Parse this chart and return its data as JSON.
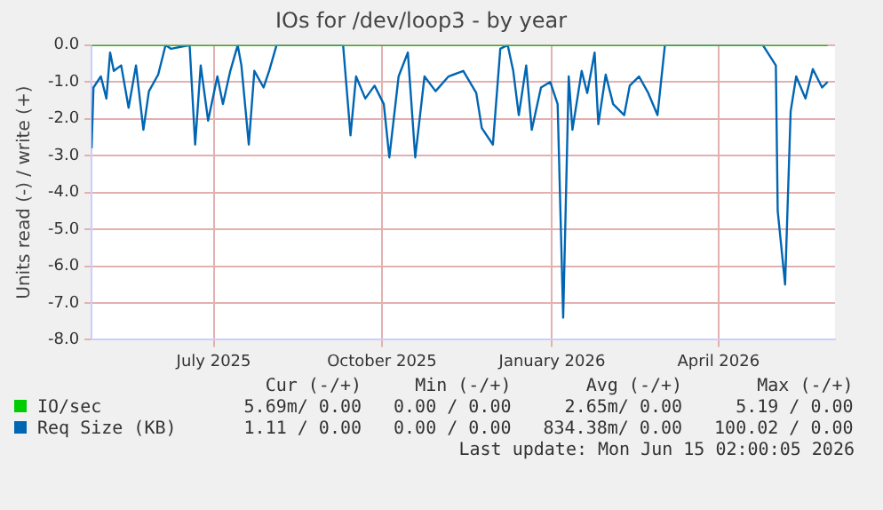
{
  "chart_data": {
    "type": "line",
    "title": "IOs for /dev/loop3 - by year",
    "ylabel": "Units read (-) / write (+)",
    "xlim": [
      "2025-05-12",
      "2026-06-18"
    ],
    "xticks": [
      {
        "value": "2025-07-17",
        "label": "July 2025"
      },
      {
        "value": "2025-10-16",
        "label": "October 2025"
      },
      {
        "value": "2026-01-16",
        "label": "January 2026"
      },
      {
        "value": "2026-04-16",
        "label": "April 2026"
      }
    ],
    "ylim": [
      -8,
      0
    ],
    "yticks": [
      {
        "value": -8,
        "label": "-8.0"
      },
      {
        "value": -7,
        "label": "-7.0"
      },
      {
        "value": -6,
        "label": "-6.0"
      },
      {
        "value": -5,
        "label": "-5.0"
      },
      {
        "value": -4,
        "label": "-4.0"
      },
      {
        "value": -3,
        "label": "-3.0"
      },
      {
        "value": -2,
        "label": "-2.0"
      },
      {
        "value": -1,
        "label": "-1.0"
      },
      {
        "value": 0,
        "label": "0.0"
      }
    ],
    "grid": true,
    "legend": "bottom",
    "marker": "none",
    "line_style": "solid",
    "series": [
      {
        "name": "IO/sec",
        "color": "#00cc00",
        "x": [
          "2025-05-12",
          "2026-06-14"
        ],
        "values": [
          0,
          0
        ]
      },
      {
        "name": "Req Size (KB)",
        "color": "#0066b3",
        "x": [
          "2025-05-12",
          "2025-05-13",
          "2025-05-17",
          "2025-05-20",
          "2025-05-22",
          "2025-05-24",
          "2025-05-28",
          "2025-06-01",
          "2025-06-05",
          "2025-06-09",
          "2025-06-12",
          "2025-06-17",
          "2025-06-21",
          "2025-06-24",
          "2025-07-04",
          "2025-07-07",
          "2025-07-10",
          "2025-07-14",
          "2025-07-19",
          "2025-07-22",
          "2025-07-26",
          "2025-07-30",
          "2025-08-01",
          "2025-08-05",
          "2025-08-08",
          "2025-08-13",
          "2025-08-16",
          "2025-08-20",
          "2025-09-25",
          "2025-09-29",
          "2025-10-02",
          "2025-10-07",
          "2025-10-12",
          "2025-10-17",
          "2025-10-20",
          "2025-10-25",
          "2025-10-30",
          "2025-11-03",
          "2025-11-08",
          "2025-11-14",
          "2025-11-21",
          "2025-11-29",
          "2025-12-06",
          "2025-12-09",
          "2025-12-15",
          "2025-12-19",
          "2025-12-23",
          "2025-12-26",
          "2025-12-29",
          "2026-01-02",
          "2026-01-05",
          "2026-01-10",
          "2026-01-15",
          "2026-01-19",
          "2026-01-22",
          "2026-01-25",
          "2026-01-27",
          "2026-02-01",
          "2026-02-04",
          "2026-02-08",
          "2026-02-10",
          "2026-02-14",
          "2026-02-18",
          "2026-02-24",
          "2026-02-27",
          "2026-03-04",
          "2026-03-09",
          "2026-03-14",
          "2026-03-18",
          "2026-05-10",
          "2026-05-17",
          "2026-05-18",
          "2026-05-22",
          "2026-05-25",
          "2026-05-28",
          "2026-06-02",
          "2026-06-06",
          "2026-06-11",
          "2026-06-14"
        ],
        "values": [
          -2.8,
          -1.15,
          -0.85,
          -1.45,
          -0.2,
          -0.7,
          -0.55,
          -1.7,
          -0.55,
          -2.3,
          -1.25,
          -0.8,
          0,
          -0.1,
          0,
          -2.7,
          -0.55,
          -2.05,
          -0.85,
          -1.6,
          -0.7,
          0,
          -0.55,
          -2.7,
          -0.7,
          -1.15,
          -0.7,
          0,
          0,
          -2.45,
          -0.85,
          -1.45,
          -1.1,
          -1.6,
          -3.05,
          -0.85,
          -0.2,
          -3.05,
          -0.85,
          -1.25,
          -0.85,
          -0.7,
          -1.3,
          -2.25,
          -2.7,
          -0.1,
          0,
          -0.7,
          -1.9,
          -0.55,
          -2.3,
          -1.15,
          -1.0,
          -1.6,
          -7.4,
          -0.85,
          -2.3,
          -0.7,
          -1.3,
          -0.2,
          -2.15,
          -0.8,
          -1.6,
          -1.9,
          -1.1,
          -0.85,
          -1.3,
          -1.9,
          0,
          0,
          -0.55,
          -4.5,
          -6.5,
          -1.8,
          -0.85,
          -1.45,
          -0.65,
          -1.15,
          -1.0
        ]
      }
    ],
    "annotations": [
      "Cur (-/+)",
      "Min (-/+)",
      "Avg (-/+)",
      "Max (-/+)",
      "5.69m/ 0.00",
      "0.00 / 0.00",
      "2.65m/ 0.00",
      "5.19 / 0.00",
      "1.11 / 0.00",
      "0.00 / 0.00",
      "834.38m/ 0.00",
      "100.02 / 0.00",
      "Last update: Mon Jun 15 02:00:05 2026"
    ]
  }
}
